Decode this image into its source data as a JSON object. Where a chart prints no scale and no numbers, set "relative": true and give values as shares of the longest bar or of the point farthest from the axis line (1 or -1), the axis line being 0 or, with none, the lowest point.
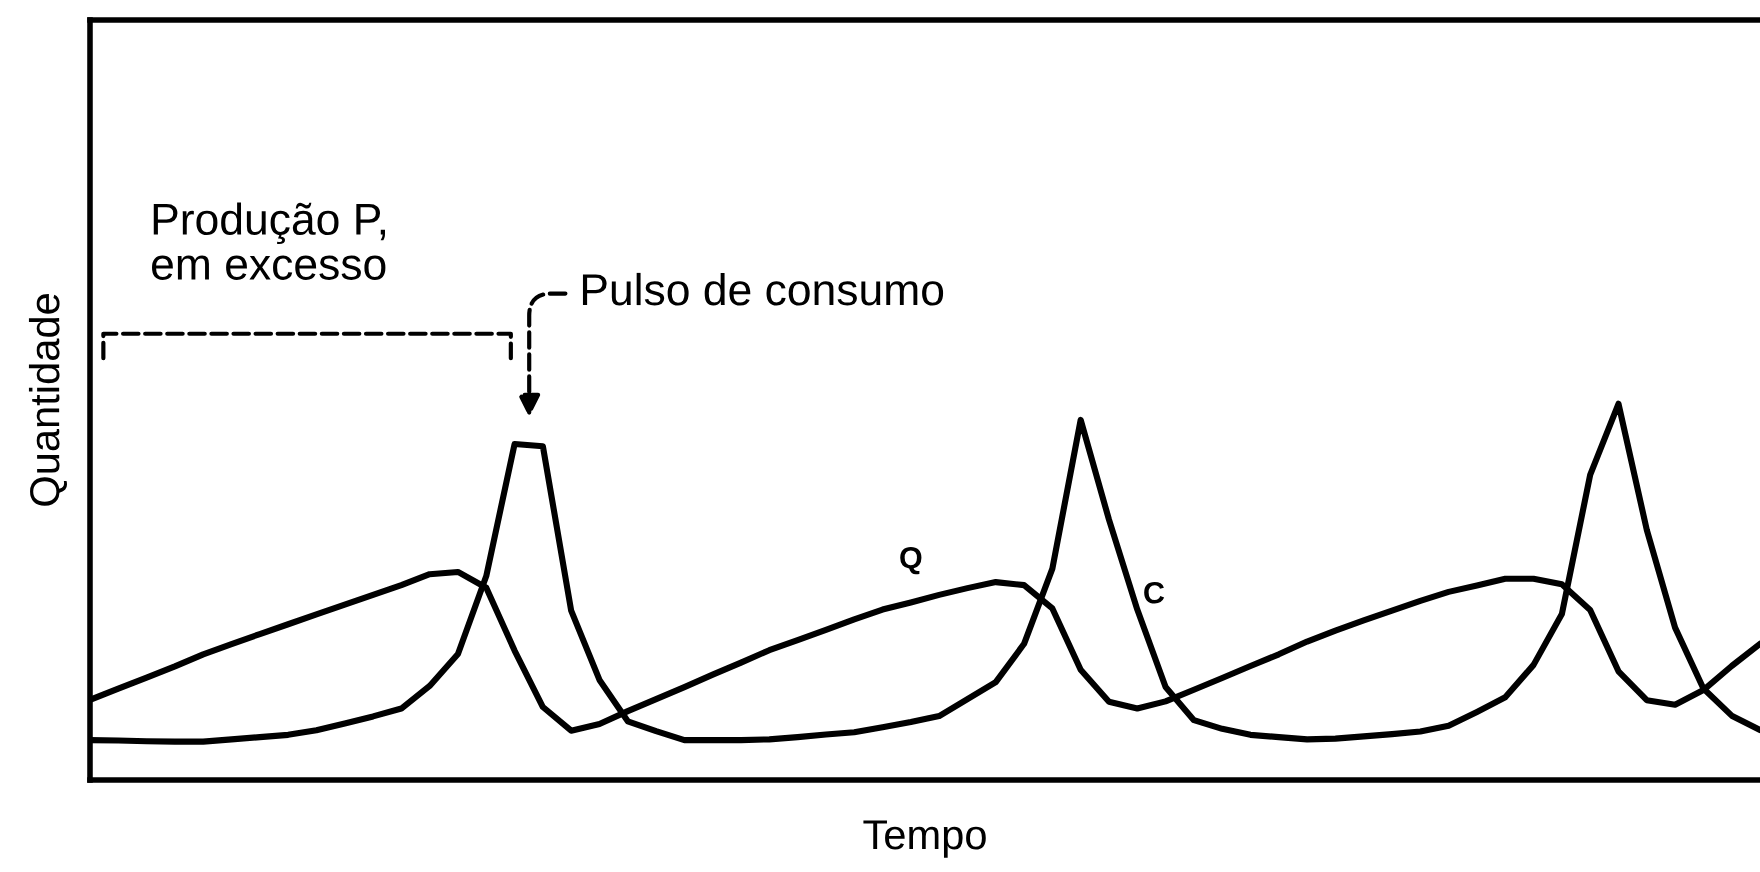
{
  "chart_data": {
    "type": "line",
    "relative": true,
    "xlabel": "Tempo",
    "ylabel": "Quantidade",
    "tick_labels": false,
    "marker": "none",
    "line_style": "solid",
    "annotations": [
      "Produção P,\nem excesso",
      "Pulso de consumo"
    ],
    "categories": [
      null,
      null,
      null,
      null,
      null,
      null,
      null,
      null,
      null,
      null,
      null,
      null,
      null,
      null,
      null,
      null,
      null,
      null,
      null,
      null,
      null,
      null,
      null,
      null,
      null,
      null,
      null,
      null,
      null,
      null,
      null,
      null,
      null,
      null,
      null,
      null,
      null,
      null,
      null,
      null,
      null,
      null,
      null,
      null,
      null,
      null,
      null,
      null,
      null,
      null,
      null,
      null,
      null,
      null,
      null,
      null,
      null,
      null,
      null,
      null
    ],
    "series": [
      {
        "name": "Q",
        "color": "#000000",
        "values": [
          0.213,
          0.243,
          0.272,
          0.302,
          0.334,
          0.361,
          0.388,
          0.414,
          0.44,
          0.466,
          0.492,
          0.518,
          0.547,
          0.553,
          0.511,
          0.344,
          0.194,
          0.131,
          0.149,
          0.183,
          0.215,
          0.247,
          0.28,
          0.312,
          0.345,
          0.372,
          0.399,
          0.427,
          0.453,
          0.472,
          0.492,
          0.51,
          0.526,
          0.518,
          0.456,
          0.293,
          0.208,
          0.19,
          0.209,
          0.24,
          0.271,
          0.303,
          0.334,
          0.368,
          0.397,
          0.424,
          0.45,
          0.476,
          0.5,
          0.517,
          0.535,
          0.535,
          0.52,
          0.452,
          0.289,
          0.212,
          0.2,
          0.239,
          0.303,
          0.362
        ]
      },
      {
        "name": "C",
        "color": "#000000",
        "values": [
          0.106,
          0.105,
          0.103,
          0.102,
          0.102,
          0.108,
          0.114,
          0.12,
          0.132,
          0.15,
          0.169,
          0.19,
          0.25,
          0.335,
          0.542,
          0.893,
          0.887,
          0.45,
          0.266,
          0.156,
          0.13,
          0.106,
          0.106,
          0.106,
          0.108,
          0.114,
          0.121,
          0.127,
          0.14,
          0.154,
          0.17,
          0.215,
          0.26,
          0.362,
          0.562,
          0.957,
          0.692,
          0.453,
          0.247,
          0.159,
          0.136,
          0.12,
          0.114,
          0.108,
          0.11,
          0.116,
          0.122,
          0.129,
          0.144,
          0.181,
          0.22,
          0.306,
          0.441,
          0.811,
          1,
          0.665,
          0.405,
          0.243,
          0.171,
          0.133
        ]
      }
    ]
  }
}
